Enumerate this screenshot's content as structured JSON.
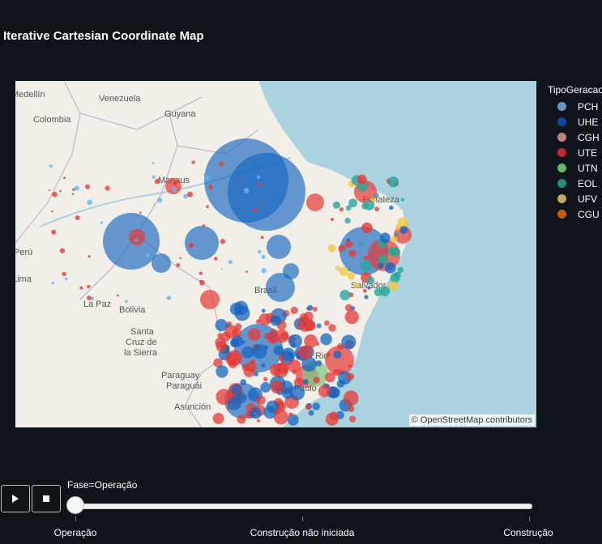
{
  "title": "Iterative Cartesian Coordinate Map",
  "map": {
    "attribution": "© OpenStreetMap contributors",
    "place_labels": [
      {
        "text": "Medellín"
      },
      {
        "text": "Venezuela"
      },
      {
        "text": "Colombia"
      },
      {
        "text": "Guyana"
      },
      {
        "text": "Manaus"
      },
      {
        "text": "Fortaleza"
      },
      {
        "text": "Perú"
      },
      {
        "text": "Lima"
      },
      {
        "text": "Brasil"
      },
      {
        "text": "Salvador"
      },
      {
        "text": "La Paz"
      },
      {
        "text": "Bolivia"
      },
      {
        "text": "Santa"
      },
      {
        "text": "Cruz de"
      },
      {
        "text": "la Sierra"
      },
      {
        "text": "Paraguay"
      },
      {
        "text": "Paraguái"
      },
      {
        "text": "Asunción"
      },
      {
        "text": "Rio"
      },
      {
        "text": "São Paulo"
      }
    ]
  },
  "legend": {
    "title": "TipoGeracao",
    "items": [
      {
        "label": "PCH",
        "color": "#6b93c5"
      },
      {
        "label": "UHE",
        "color": "#0d47a1"
      },
      {
        "label": "CGH",
        "color": "#c08080"
      },
      {
        "label": "UTE",
        "color": "#c62828"
      },
      {
        "label": "UTN",
        "color": "#66bb6a"
      },
      {
        "label": "EOL",
        "color": "#26897b"
      },
      {
        "label": "UFV",
        "color": "#c8a860"
      },
      {
        "label": "CGU",
        "color": "#c75b0c"
      }
    ]
  },
  "controls": {
    "play_icon": "play-icon",
    "stop_icon": "stop-icon",
    "slider_label": "Fase=Operação",
    "slider_value": "Operação",
    "steps": [
      "Operação",
      "Construção não iniciada",
      "Construção"
    ]
  }
}
